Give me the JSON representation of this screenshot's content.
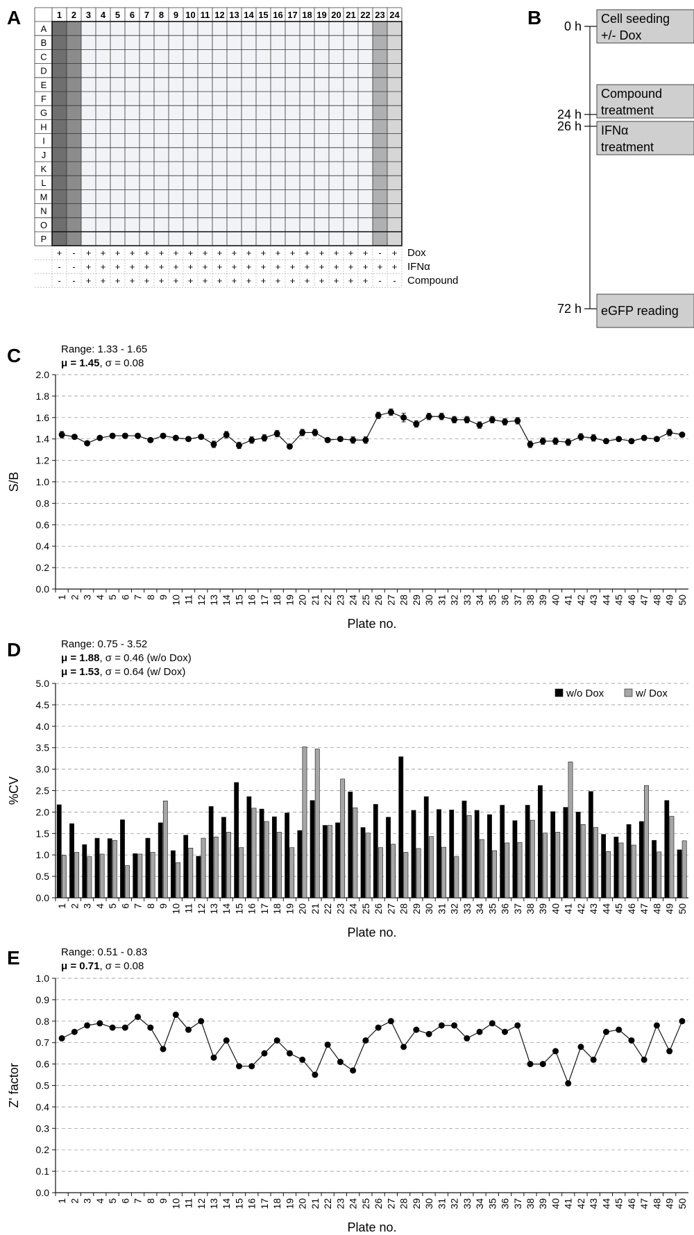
{
  "panels": {
    "a": {
      "letter": "A",
      "columns": [
        "1",
        "2",
        "3",
        "4",
        "5",
        "6",
        "7",
        "8",
        "9",
        "10",
        "11",
        "12",
        "13",
        "14",
        "15",
        "16",
        "17",
        "18",
        "19",
        "20",
        "21",
        "22",
        "23",
        "24"
      ],
      "rows": [
        "A",
        "B",
        "C",
        "D",
        "E",
        "F",
        "G",
        "H",
        "I",
        "J",
        "K",
        "L",
        "M",
        "N",
        "O",
        "P"
      ],
      "treatments": [
        {
          "name": "Dox",
          "signs": [
            "+",
            "-",
            "+",
            "+",
            "+",
            "+",
            "+",
            "+",
            "+",
            "+",
            "+",
            "+",
            "+",
            "+",
            "+",
            "+",
            "+",
            "+",
            "+",
            "+",
            "+",
            "+",
            "-",
            "+"
          ]
        },
        {
          "name": "IFNα",
          "signs": [
            "-",
            "-",
            "+",
            "+",
            "+",
            "+",
            "+",
            "+",
            "+",
            "+",
            "+",
            "+",
            "+",
            "+",
            "+",
            "+",
            "+",
            "+",
            "+",
            "+",
            "+",
            "+",
            "+",
            "+"
          ]
        },
        {
          "name": "Compound",
          "signs": [
            "-",
            "-",
            "+",
            "+",
            "+",
            "+",
            "+",
            "+",
            "+",
            "+",
            "+",
            "+",
            "+",
            "+",
            "+",
            "+",
            "+",
            "+",
            "+",
            "+",
            "+",
            "+",
            "-",
            "-"
          ]
        }
      ],
      "colors": {
        "col1": "#6f6f6f",
        "col2": "#8c8c8c",
        "inner": "#f1f3f7",
        "col23": "#b0b0b0",
        "col24": "#d6d6d6"
      }
    },
    "b": {
      "letter": "B",
      "events": [
        {
          "time": "0 h",
          "lines": [
            "Cell seeding",
            "+/- Dox"
          ]
        },
        {
          "time": "24 h",
          "lines": [
            "Compound",
            "treatment"
          ]
        },
        {
          "time": "26 h",
          "lines": [
            "IFNα",
            "treatment"
          ]
        },
        {
          "time": "72 h",
          "lines": [
            "eGFP reading"
          ]
        }
      ],
      "box_color": "#cfcfcf"
    }
  },
  "chart_data": [
    {
      "panel": "C",
      "type": "line",
      "stats": [
        "Range: 1.33 - 1.65",
        "μ = 1.45, σ = 0.08"
      ],
      "ylabel": "S/B",
      "xlabel": "Plate no.",
      "ylim": [
        0,
        2.0
      ],
      "yticks": [
        "0.0",
        "0.2",
        "0.4",
        "0.6",
        "0.8",
        "1.0",
        "1.2",
        "1.4",
        "1.6",
        "1.8",
        "2.0"
      ],
      "x": [
        1,
        2,
        3,
        4,
        5,
        6,
        7,
        8,
        9,
        10,
        11,
        12,
        13,
        14,
        15,
        16,
        17,
        18,
        19,
        20,
        21,
        22,
        23,
        24,
        25,
        26,
        27,
        28,
        29,
        30,
        31,
        32,
        33,
        34,
        35,
        36,
        37,
        38,
        39,
        40,
        41,
        42,
        43,
        44,
        45,
        46,
        47,
        48,
        49,
        50
      ],
      "values": [
        1.44,
        1.42,
        1.36,
        1.41,
        1.43,
        1.43,
        1.43,
        1.39,
        1.43,
        1.41,
        1.4,
        1.42,
        1.35,
        1.44,
        1.34,
        1.39,
        1.41,
        1.45,
        1.33,
        1.46,
        1.46,
        1.39,
        1.4,
        1.39,
        1.39,
        1.62,
        1.65,
        1.6,
        1.54,
        1.61,
        1.61,
        1.58,
        1.58,
        1.53,
        1.58,
        1.56,
        1.57,
        1.35,
        1.38,
        1.38,
        1.37,
        1.42,
        1.41,
        1.38,
        1.4,
        1.38,
        1.41,
        1.4,
        1.46,
        1.44
      ],
      "errors": [
        0.03,
        0.02,
        0.02,
        0.02,
        0.02,
        0.02,
        0.02,
        0.02,
        0.02,
        0.02,
        0.02,
        0.02,
        0.03,
        0.03,
        0.03,
        0.03,
        0.03,
        0.03,
        0.02,
        0.03,
        0.03,
        0.02,
        0.02,
        0.03,
        0.03,
        0.03,
        0.03,
        0.04,
        0.03,
        0.03,
        0.03,
        0.03,
        0.03,
        0.03,
        0.03,
        0.03,
        0.03,
        0.03,
        0.03,
        0.03,
        0.03,
        0.03,
        0.03,
        0.02,
        0.02,
        0.02,
        0.02,
        0.02,
        0.03,
        0.02
      ],
      "grid": true
    },
    {
      "panel": "D",
      "type": "bar",
      "stats": [
        "Range: 0.75 - 3.52",
        "μ = 1.88, σ = 0.46 (w/o Dox)",
        "μ = 1.53, σ = 0.64 (w/ Dox)"
      ],
      "ylabel": "%CV",
      "xlabel": "Plate no.",
      "ylim": [
        0,
        5.0
      ],
      "yticks": [
        "0.0",
        "0.5",
        "1.0",
        "1.5",
        "2.0",
        "2.5",
        "3.0",
        "3.5",
        "4.0",
        "4.5",
        "5.0"
      ],
      "categories": [
        "1",
        "2",
        "3",
        "4",
        "5",
        "6",
        "7",
        "8",
        "9",
        "10",
        "11",
        "12",
        "13",
        "14",
        "15",
        "16",
        "17",
        "18",
        "19",
        "20",
        "21",
        "22",
        "23",
        "24",
        "25",
        "26",
        "27",
        "28",
        "29",
        "30",
        "31",
        "32",
        "33",
        "34",
        "35",
        "36",
        "37",
        "38",
        "39",
        "40",
        "41",
        "42",
        "43",
        "44",
        "45",
        "46",
        "47",
        "48",
        "49",
        "50"
      ],
      "series": [
        {
          "name": "w/o Dox",
          "color": "#000000",
          "values": [
            2.17,
            1.73,
            1.24,
            1.39,
            1.38,
            1.82,
            1.03,
            1.39,
            1.75,
            1.1,
            1.46,
            0.97,
            2.13,
            1.88,
            2.69,
            2.36,
            2.07,
            1.89,
            1.98,
            1.57,
            2.27,
            1.69,
            1.75,
            2.47,
            1.64,
            2.18,
            1.88,
            3.29,
            2.04,
            2.36,
            2.06,
            2.05,
            2.26,
            2.04,
            1.94,
            2.16,
            1.8,
            2.16,
            2.62,
            2.01,
            2.11,
            2.0,
            2.48,
            1.48,
            1.42,
            1.71,
            1.78,
            1.34,
            2.27,
            1.12
          ]
        },
        {
          "name": "w/ Dox",
          "color": "#a6a6a6",
          "values": [
            0.99,
            1.06,
            0.96,
            1.02,
            1.34,
            0.75,
            1.02,
            1.06,
            2.26,
            0.82,
            1.16,
            1.39,
            1.42,
            1.53,
            1.17,
            2.09,
            1.78,
            1.53,
            1.17,
            3.52,
            3.47,
            1.69,
            2.77,
            2.1,
            1.51,
            1.17,
            1.25,
            1.06,
            1.15,
            1.43,
            1.18,
            0.96,
            1.92,
            1.36,
            1.1,
            1.28,
            1.29,
            1.81,
            1.51,
            1.53,
            3.17,
            1.71,
            1.64,
            1.08,
            1.28,
            1.23,
            2.62,
            1.07,
            1.9,
            1.33
          ]
        }
      ],
      "legend": "top-right",
      "grid": true
    },
    {
      "panel": "E",
      "type": "line",
      "stats": [
        "Range: 0.51 - 0.83",
        "μ = 0.71, σ = 0.08"
      ],
      "ylabel": "Z' factor",
      "xlabel": "Plate no.",
      "ylim": [
        0,
        1.0
      ],
      "yticks": [
        "0.0",
        "0.1",
        "0.2",
        "0.3",
        "0.4",
        "0.5",
        "0.6",
        "0.7",
        "0.8",
        "0.9",
        "1.0"
      ],
      "x": [
        1,
        2,
        3,
        4,
        5,
        6,
        7,
        8,
        9,
        10,
        11,
        12,
        13,
        14,
        15,
        16,
        17,
        18,
        19,
        20,
        21,
        22,
        23,
        24,
        25,
        26,
        27,
        28,
        29,
        30,
        31,
        32,
        33,
        34,
        35,
        36,
        37,
        38,
        39,
        40,
        41,
        42,
        43,
        44,
        45,
        46,
        47,
        48,
        49,
        50
      ],
      "values": [
        0.72,
        0.75,
        0.78,
        0.79,
        0.77,
        0.77,
        0.82,
        0.77,
        0.67,
        0.83,
        0.76,
        0.8,
        0.63,
        0.71,
        0.59,
        0.59,
        0.65,
        0.71,
        0.65,
        0.62,
        0.55,
        0.69,
        0.61,
        0.57,
        0.71,
        0.77,
        0.8,
        0.68,
        0.76,
        0.74,
        0.78,
        0.78,
        0.72,
        0.75,
        0.79,
        0.75,
        0.78,
        0.6,
        0.6,
        0.66,
        0.51,
        0.68,
        0.62,
        0.75,
        0.76,
        0.71,
        0.62,
        0.78,
        0.66,
        0.8
      ],
      "grid": true
    }
  ]
}
